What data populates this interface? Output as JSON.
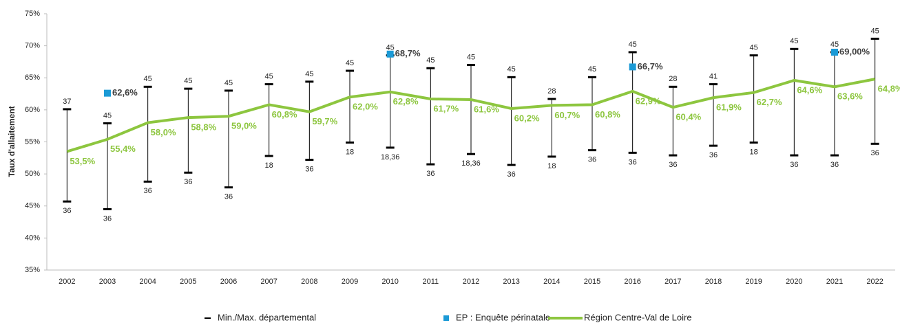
{
  "chart_data": {
    "type": "line",
    "y_label": "Taux d'allaitement",
    "categories": [
      "2002",
      "2003",
      "2004",
      "2005",
      "2006",
      "2007",
      "2008",
      "2009",
      "2010",
      "2011",
      "2012",
      "2013",
      "2014",
      "2015",
      "2016",
      "2017",
      "2018",
      "2019",
      "2020",
      "2021",
      "2022"
    ],
    "ylim": [
      35,
      75
    ],
    "yticks": [
      {
        "value": 35,
        "label": "35%"
      },
      {
        "value": 40,
        "label": "40%"
      },
      {
        "value": 45,
        "label": "45%"
      },
      {
        "value": 50,
        "label": "50%"
      },
      {
        "value": 55,
        "label": "55%"
      },
      {
        "value": 60,
        "label": "60%"
      },
      {
        "value": 65,
        "label": "65%"
      },
      {
        "value": 70,
        "label": "70%"
      },
      {
        "value": 75,
        "label": "75%"
      }
    ],
    "grid": false,
    "range": {
      "name": "Min./Max. départemental",
      "color": "#000000",
      "max": [
        60.1,
        57.9,
        63.6,
        63.3,
        63.0,
        64.0,
        64.4,
        66.1,
        68.5,
        66.5,
        67.0,
        65.1,
        61.7,
        65.1,
        69.0,
        63.6,
        64.0,
        68.5,
        69.5,
        69.0,
        71.1
      ],
      "min": [
        45.7,
        44.5,
        48.8,
        50.2,
        47.9,
        52.8,
        52.2,
        54.9,
        54.1,
        51.5,
        53.1,
        51.4,
        52.7,
        53.7,
        53.3,
        52.9,
        54.4,
        54.9,
        52.9,
        52.9,
        54.7
      ],
      "max_labels": [
        "37",
        "45",
        "45",
        "45",
        "45",
        "45",
        "45",
        "45",
        "45",
        "45",
        "45",
        "45",
        "28",
        "45",
        "45",
        "28",
        "41",
        "45",
        "45",
        "45",
        "45"
      ],
      "min_labels": [
        "36",
        "36",
        "36",
        "36",
        "36",
        "18",
        "36",
        "18",
        "18,36",
        "36",
        "18,36",
        "36",
        "18",
        "36",
        "36",
        "36",
        "36",
        "18",
        "36",
        "36",
        "36"
      ]
    },
    "series": [
      {
        "name": "EP : Enquête périnatale",
        "color": "#1b9ad6",
        "marker": "square",
        "values": [
          null,
          62.6,
          null,
          null,
          null,
          null,
          null,
          null,
          68.7,
          null,
          null,
          null,
          null,
          null,
          66.7,
          null,
          null,
          null,
          null,
          69.0,
          null
        ],
        "value_labels": [
          null,
          "62,6%",
          null,
          null,
          null,
          null,
          null,
          null,
          "68,7%",
          null,
          null,
          null,
          null,
          null,
          "66,7%",
          null,
          null,
          null,
          null,
          "69,00%",
          null
        ]
      },
      {
        "name": "Région Centre-Val de Loire",
        "color": "#8dc63f",
        "values": [
          53.5,
          55.4,
          58.0,
          58.8,
          59.0,
          60.8,
          59.7,
          62.0,
          62.8,
          61.7,
          61.6,
          60.2,
          60.7,
          60.8,
          62.9,
          60.4,
          61.9,
          62.7,
          64.6,
          63.6,
          64.8
        ],
        "value_labels": [
          "53,5%",
          "55,4%",
          "58,0%",
          "58,8%",
          "59,0%",
          "60,8%",
          "59,7%",
          "62,0%",
          "62,8%",
          "61,7%",
          "61,6%",
          "60,2%",
          "60,7%",
          "60,8%",
          "62,9%",
          "60,4%",
          "61,9%",
          "62,7%",
          "64,6%",
          "63,6%",
          "64,8%"
        ]
      }
    ]
  }
}
